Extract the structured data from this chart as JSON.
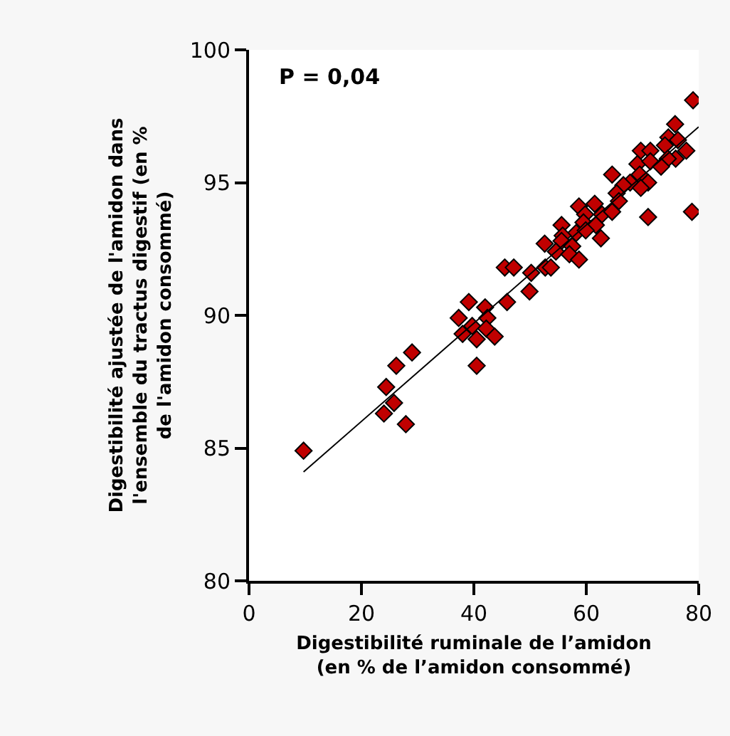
{
  "chart_data": {
    "type": "scatter",
    "xlabel": "Digestibilité ruminale de l’amidon\n(en % de l’amidon consommé)",
    "ylabel": "Digestibilité ajustée de l'amidon dans\nl'ensemble du tractus digestif (en %\nde l'amidon consommé)",
    "annotations": [
      "P = 0,04"
    ],
    "xlim": [
      0,
      80
    ],
    "ylim": [
      80,
      100
    ],
    "xticks": [
      0,
      20,
      40,
      60,
      80
    ],
    "yticks": [
      80,
      85,
      90,
      95,
      100
    ],
    "marker": "diamond",
    "series": [
      {
        "color": "#c00000",
        "x": [
          9.7,
          24.4,
          26.2,
          29,
          24,
          25.8,
          27.9,
          39.1,
          37.3,
          38,
          39.7,
          40.5,
          40.5,
          79,
          75.8,
          74.6,
          76.3,
          74,
          77.8,
          75.9,
          74.5,
          69.7,
          71.4,
          69.1,
          71.4,
          73.3,
          64.6,
          69.5,
          67.8,
          66.6,
          71,
          69.7,
          65.4,
          65.8,
          71,
          78.8,
          61.5,
          58.7,
          59.8,
          62.8,
          64.6,
          59.5,
          61.7,
          55.6,
          58.2,
          59.9,
          55.8,
          62.6,
          52.6,
          55.6,
          57.5,
          54.6,
          57,
          58.7,
          45.5,
          47.1,
          50.2,
          52.7,
          53.7,
          49.9,
          42,
          45.9,
          42.4,
          42.2,
          43.7
        ],
        "values": [
          84.9,
          87.3,
          88.1,
          88.6,
          86.3,
          86.7,
          85.9,
          90.5,
          89.9,
          89.3,
          89.6,
          89.1,
          88.1,
          98.1,
          97.2,
          96.7,
          96.6,
          96.4,
          96.2,
          95.9,
          95.9,
          96.2,
          96.2,
          95.7,
          95.8,
          95.6,
          95.3,
          95.3,
          95.0,
          94.9,
          95.0,
          94.8,
          94.6,
          94.3,
          93.7,
          93.9,
          94.2,
          94.1,
          93.8,
          93.8,
          93.9,
          93.5,
          93.4,
          93.4,
          93.1,
          93.2,
          93.0,
          92.9,
          92.7,
          92.8,
          92.6,
          92.4,
          92.3,
          92.1,
          91.8,
          91.8,
          91.6,
          91.8,
          91.8,
          90.9,
          90.3,
          90.5,
          89.9,
          89.5,
          89.2
        ]
      },
      {
        "type": "line",
        "color": "#000000",
        "marker": "none",
        "line_style": "solid",
        "x": [
          9.7,
          80
        ],
        "values": [
          84.1,
          97.1
        ]
      }
    ]
  }
}
